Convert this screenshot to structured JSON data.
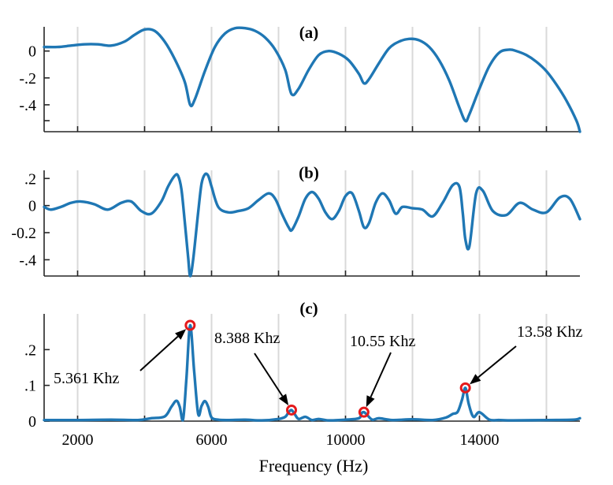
{
  "chart_data": [
    {
      "type": "line",
      "panel_label": "(a)",
      "xlim": [
        1000,
        17000
      ],
      "ylim": [
        -0.6,
        0.18
      ],
      "y_ticks": [
        {
          "value": 0,
          "label": "0"
        },
        {
          "value": -0.2,
          "label": "-.2"
        },
        {
          "value": -0.4,
          "label": "-.4"
        }
      ],
      "y_minor_ticks": [
        -0.6
      ],
      "x_gridlines": [
        2000,
        4000,
        6000,
        8000,
        10000,
        12000,
        14000,
        16000
      ],
      "x_tick_labels_shown": false,
      "grid": "vertical",
      "series": [
        {
          "color": "#1f77b4",
          "x": [
            1000,
            1400,
            1800,
            2200,
            2600,
            3000,
            3400,
            3700,
            4000,
            4300,
            4600,
            4900,
            5200,
            5361,
            5500,
            5800,
            6100,
            6400,
            6700,
            7000,
            7300,
            7600,
            7900,
            8200,
            8388,
            8600,
            8900,
            9200,
            9500,
            9800,
            10100,
            10400,
            10550,
            10700,
            11000,
            11300,
            11600,
            11900,
            12200,
            12500,
            12800,
            13100,
            13400,
            13580,
            13700,
            14000,
            14300,
            14600,
            14900,
            15100,
            15400,
            15700,
            16000,
            16300,
            16600,
            16900,
            17000
          ],
          "y": [
            0.03,
            0.03,
            0.04,
            0.05,
            0.05,
            0.04,
            0.07,
            0.12,
            0.16,
            0.15,
            0.07,
            -0.06,
            -0.23,
            -0.4,
            -0.36,
            -0.15,
            0.03,
            0.13,
            0.17,
            0.17,
            0.15,
            0.1,
            0.01,
            -0.14,
            -0.32,
            -0.28,
            -0.14,
            -0.03,
            0.0,
            -0.02,
            -0.07,
            -0.17,
            -0.24,
            -0.21,
            -0.09,
            0.02,
            0.07,
            0.09,
            0.08,
            0.03,
            -0.07,
            -0.22,
            -0.42,
            -0.52,
            -0.47,
            -0.28,
            -0.11,
            -0.01,
            0.01,
            0.0,
            -0.03,
            -0.08,
            -0.15,
            -0.25,
            -0.37,
            -0.52,
            -0.6
          ]
        }
      ]
    },
    {
      "type": "line",
      "panel_label": "(b)",
      "xlim": [
        1000,
        17000
      ],
      "ylim": [
        -0.52,
        0.26
      ],
      "y_ticks": [
        {
          "value": 0.2,
          "label": ".2"
        },
        {
          "value": 0,
          "label": "0"
        },
        {
          "value": -0.2,
          "label": "-0.2"
        },
        {
          "value": -0.4,
          "label": "-.4"
        }
      ],
      "x_gridlines": [
        2000,
        4000,
        6000,
        8000,
        10000,
        12000,
        14000,
        16000
      ],
      "x_tick_labels_shown": false,
      "grid": "vertical",
      "series": [
        {
          "color": "#1f77b4",
          "x": [
            1000,
            1200,
            1500,
            1800,
            2100,
            2500,
            2900,
            3300,
            3600,
            3900,
            4200,
            4500,
            4700,
            4900,
            5000,
            5100,
            5200,
            5300,
            5361,
            5450,
            5600,
            5700,
            5800,
            5900,
            6000,
            6200,
            6500,
            6800,
            7100,
            7400,
            7700,
            7900,
            8100,
            8300,
            8400,
            8600,
            8800,
            9000,
            9200,
            9400,
            9600,
            9800,
            10000,
            10200,
            10400,
            10550,
            10700,
            10900,
            11100,
            11300,
            11500,
            11700,
            12000,
            12300,
            12600,
            12900,
            13200,
            13400,
            13500,
            13580,
            13700,
            13900,
            14100,
            14400,
            14800,
            15200,
            15600,
            16000,
            16400,
            16700,
            17000
          ],
          "y": [
            -0.01,
            -0.03,
            -0.01,
            0.02,
            0.03,
            0.01,
            -0.03,
            0.02,
            0.03,
            -0.04,
            -0.06,
            0.03,
            0.14,
            0.22,
            0.22,
            0.12,
            -0.12,
            -0.38,
            -0.52,
            -0.4,
            -0.05,
            0.16,
            0.23,
            0.22,
            0.14,
            -0.01,
            -0.05,
            -0.04,
            -0.02,
            0.04,
            0.09,
            0.05,
            -0.06,
            -0.16,
            -0.18,
            -0.08,
            0.05,
            0.1,
            0.05,
            -0.05,
            -0.1,
            -0.04,
            0.07,
            0.09,
            -0.04,
            -0.16,
            -0.13,
            0.02,
            0.09,
            0.04,
            -0.06,
            -0.01,
            -0.02,
            -0.03,
            -0.08,
            0.02,
            0.15,
            0.14,
            -0.05,
            -0.25,
            -0.3,
            0.09,
            0.11,
            -0.04,
            -0.07,
            0.02,
            -0.03,
            -0.05,
            0.06,
            0.05,
            -0.1
          ]
        }
      ]
    },
    {
      "type": "line",
      "panel_label": "(c)",
      "xlim": [
        1000,
        17000
      ],
      "ylim": [
        0,
        0.3
      ],
      "y_ticks": [
        {
          "value": 0.2,
          "label": ".2"
        },
        {
          "value": 0.1,
          "label": ".1"
        },
        {
          "value": 0,
          "label": "0"
        }
      ],
      "x_ticks": [
        {
          "value": 2000,
          "label": "2000"
        },
        {
          "value": 6000,
          "label": "6000"
        },
        {
          "value": 10000,
          "label": "10000"
        },
        {
          "value": 14000,
          "label": "14000"
        }
      ],
      "x_gridlines": [
        2000,
        4000,
        6000,
        8000,
        10000,
        12000,
        14000,
        16000
      ],
      "xlabel": "Frequency (Hz)",
      "grid": "vertical",
      "series": [
        {
          "color": "#1f77b4",
          "x": [
            1000,
            2000,
            3000,
            3800,
            4200,
            4600,
            4800,
            4950,
            5050,
            5150,
            5250,
            5361,
            5480,
            5600,
            5700,
            5800,
            5900,
            6000,
            6200,
            6500,
            7000,
            7500,
            8000,
            8200,
            8300,
            8388,
            8480,
            8600,
            8800,
            9000,
            9200,
            9500,
            10000,
            10400,
            10480,
            10550,
            10640,
            10800,
            11000,
            11400,
            12000,
            12600,
            13000,
            13200,
            13350,
            13480,
            13580,
            13680,
            13820,
            14000,
            14300,
            14600,
            15000,
            16000,
            16800,
            17000
          ],
          "y": [
            0.003,
            0.003,
            0.004,
            0.003,
            0.008,
            0.013,
            0.04,
            0.057,
            0.04,
            0.005,
            0.12,
            0.268,
            0.14,
            0.02,
            0.042,
            0.056,
            0.04,
            0.01,
            0.004,
            0.003,
            0.004,
            0.002,
            0.006,
            0.012,
            0.025,
            0.031,
            0.02,
            0.006,
            0.012,
            0.003,
            0.006,
            0.002,
            0.004,
            0.008,
            0.022,
            0.025,
            0.018,
            0.004,
            0.008,
            0.003,
            0.005,
            0.003,
            0.01,
            0.02,
            0.026,
            0.06,
            0.093,
            0.048,
            0.012,
            0.025,
            0.004,
            0.003,
            0.002,
            0.003,
            0.004,
            0.008
          ]
        }
      ],
      "peaks": [
        {
          "x": 5361,
          "y": 0.268,
          "label": "5.361 Khz"
        },
        {
          "x": 8388,
          "y": 0.031,
          "label": "8.388 Khz"
        },
        {
          "x": 10550,
          "y": 0.025,
          "label": "10.55 Khz"
        },
        {
          "x": 13580,
          "y": 0.093,
          "label": "13.58 Khz"
        }
      ],
      "peak_marker_color": "#e41a1c"
    }
  ]
}
